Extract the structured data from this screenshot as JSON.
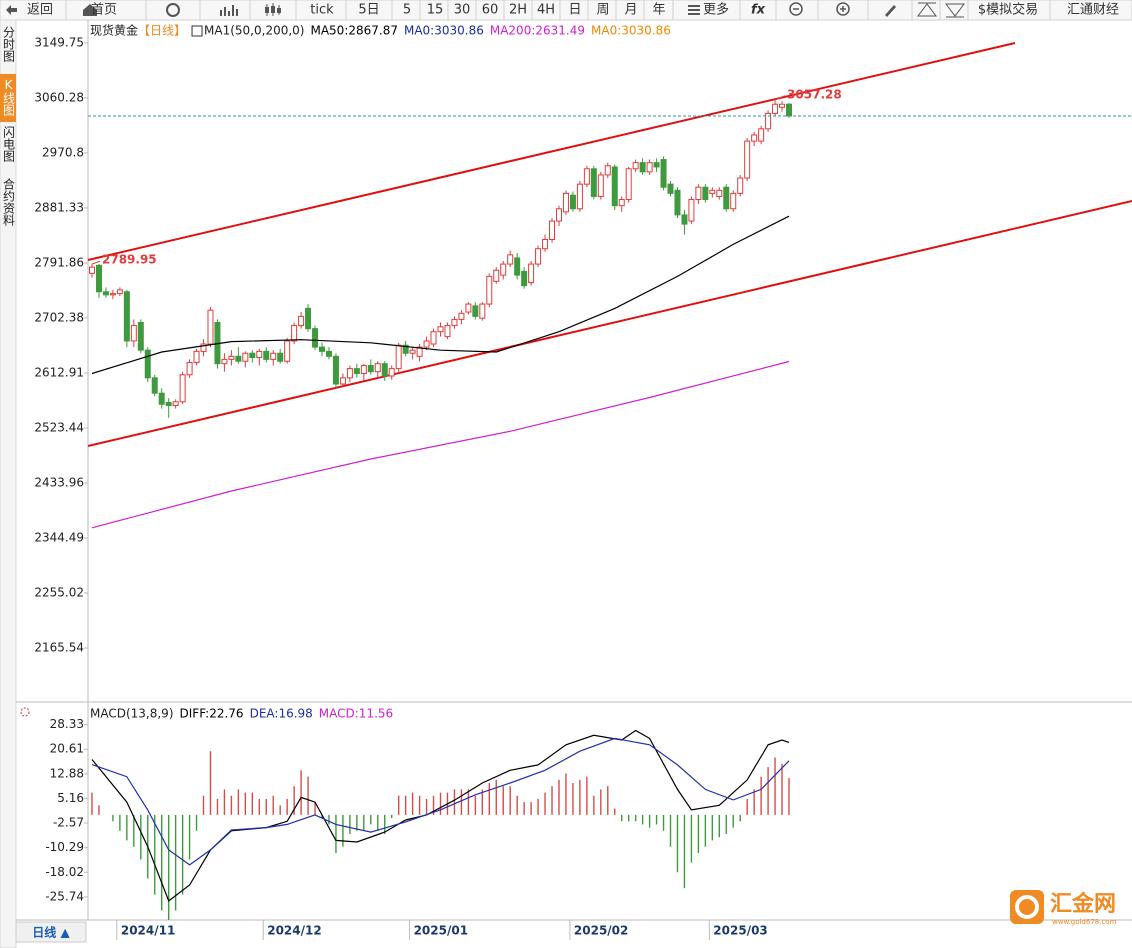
{
  "toolbar": [
    "返回",
    "首页",
    "tick",
    "5日",
    "5",
    "15",
    "30",
    "60",
    "2H",
    "4H",
    "日",
    "周",
    "月",
    "年",
    "更多",
    "fx",
    "$模拟交易",
    "汇通财经"
  ],
  "side_tabs": [
    "分时图",
    "K线图",
    "闪电图",
    "合约资料"
  ],
  "period_button": "日线 ▲",
  "logo": {
    "name": "汇金网",
    "url": "www.gold678.com"
  },
  "chart_data": [
    {
      "type": "candlestick",
      "title": "现货黄金",
      "period": "【日线】",
      "indicator": "MA1(50,0,200,0)",
      "legend": [
        {
          "text": "MA50:2867.87",
          "color": "#000000"
        },
        {
          "text": "MA0:3030.86",
          "color": "#1c2ca0"
        },
        {
          "text": "MA200:2631.49",
          "color": "#d020d0"
        },
        {
          "text": "MA0:3030.86",
          "color": "#f08a00"
        }
      ],
      "up_color": "#e03c3c",
      "down_color": "#3f9a3f",
      "candles": [
        [
          2775,
          2789.95,
          2768,
          2785
        ],
        [
          2788,
          2790,
          2735,
          2745
        ],
        [
          2745,
          2752,
          2735,
          2740
        ],
        [
          2740,
          2748,
          2733,
          2742
        ],
        [
          2742,
          2752,
          2738,
          2748
        ],
        [
          2745,
          2748,
          2655,
          2665
        ],
        [
          2665,
          2700,
          2655,
          2690
        ],
        [
          2695,
          2700,
          2645,
          2650
        ],
        [
          2650,
          2655,
          2598,
          2605
        ],
        [
          2605,
          2610,
          2575,
          2580
        ],
        [
          2580,
          2588,
          2555,
          2562
        ],
        [
          2565,
          2572,
          2540,
          2560
        ],
        [
          2560,
          2570,
          2555,
          2566
        ],
        [
          2566,
          2615,
          2562,
          2610
        ],
        [
          2610,
          2635,
          2605,
          2630
        ],
        [
          2630,
          2652,
          2625,
          2648
        ],
        [
          2648,
          2668,
          2640,
          2660
        ],
        [
          2660,
          2720,
          2655,
          2715
        ],
        [
          2695,
          2700,
          2620,
          2628
        ],
        [
          2628,
          2645,
          2615,
          2635
        ],
        [
          2635,
          2650,
          2625,
          2640
        ],
        [
          2640,
          2655,
          2628,
          2632
        ],
        [
          2632,
          2648,
          2622,
          2645
        ],
        [
          2645,
          2650,
          2630,
          2638
        ],
        [
          2638,
          2652,
          2625,
          2648
        ],
        [
          2648,
          2655,
          2630,
          2635
        ],
        [
          2635,
          2650,
          2625,
          2645
        ],
        [
          2645,
          2652,
          2628,
          2632
        ],
        [
          2632,
          2670,
          2628,
          2665
        ],
        [
          2665,
          2695,
          2660,
          2690
        ],
        [
          2690,
          2712,
          2685,
          2705
        ],
        [
          2718,
          2725,
          2680,
          2685
        ],
        [
          2685,
          2690,
          2650,
          2655
        ],
        [
          2655,
          2662,
          2640,
          2648
        ],
        [
          2648,
          2655,
          2635,
          2640
        ],
        [
          2640,
          2645,
          2588,
          2595
        ],
        [
          2595,
          2612,
          2590,
          2605
        ],
        [
          2605,
          2625,
          2598,
          2620
        ],
        [
          2620,
          2628,
          2605,
          2612
        ],
        [
          2612,
          2628,
          2600,
          2625
        ],
        [
          2625,
          2635,
          2610,
          2615
        ],
        [
          2615,
          2632,
          2605,
          2628
        ],
        [
          2628,
          2632,
          2600,
          2608
        ],
        [
          2608,
          2625,
          2602,
          2620
        ],
        [
          2620,
          2662,
          2615,
          2658
        ],
        [
          2658,
          2665,
          2640,
          2645
        ],
        [
          2645,
          2655,
          2635,
          2650
        ],
        [
          2640,
          2660,
          2632,
          2655
        ],
        [
          2655,
          2672,
          2650,
          2665
        ],
        [
          2660,
          2685,
          2655,
          2680
        ],
        [
          2680,
          2695,
          2672,
          2688
        ],
        [
          2672,
          2695,
          2668,
          2690
        ],
        [
          2690,
          2705,
          2685,
          2700
        ],
        [
          2700,
          2715,
          2692,
          2710
        ],
        [
          2712,
          2728,
          2708,
          2725
        ],
        [
          2722,
          2728,
          2700,
          2705
        ],
        [
          2702,
          2728,
          2698,
          2725
        ],
        [
          2725,
          2775,
          2720,
          2770
        ],
        [
          2762,
          2785,
          2758,
          2780
        ],
        [
          2772,
          2795,
          2765,
          2790
        ],
        [
          2790,
          2812,
          2785,
          2805
        ],
        [
          2800,
          2808,
          2765,
          2772
        ],
        [
          2778,
          2785,
          2750,
          2755
        ],
        [
          2760,
          2795,
          2755,
          2790
        ],
        [
          2790,
          2820,
          2785,
          2815
        ],
        [
          2815,
          2838,
          2810,
          2830
        ],
        [
          2830,
          2865,
          2825,
          2860
        ],
        [
          2860,
          2885,
          2852,
          2880
        ],
        [
          2875,
          2910,
          2870,
          2905
        ],
        [
          2902,
          2908,
          2875,
          2880
        ],
        [
          2880,
          2925,
          2875,
          2920
        ],
        [
          2920,
          2950,
          2915,
          2945
        ],
        [
          2945,
          2950,
          2895,
          2900
        ],
        [
          2900,
          2940,
          2895,
          2935
        ],
        [
          2935,
          2955,
          2930,
          2950
        ],
        [
          2948,
          2952,
          2878,
          2885
        ],
        [
          2885,
          2900,
          2875,
          2895
        ],
        [
          2895,
          2948,
          2890,
          2945
        ],
        [
          2945,
          2960,
          2940,
          2955
        ],
        [
          2955,
          2962,
          2935,
          2940
        ],
        [
          2940,
          2960,
          2935,
          2955
        ],
        [
          2955,
          2962,
          2940,
          2948
        ],
        [
          2960,
          2965,
          2910,
          2915
        ],
        [
          2920,
          2925,
          2900,
          2905
        ],
        [
          2910,
          2915,
          2865,
          2870
        ],
        [
          2870,
          2878,
          2838,
          2855
        ],
        [
          2860,
          2900,
          2855,
          2895
        ],
        [
          2895,
          2920,
          2888,
          2915
        ],
        [
          2915,
          2920,
          2890,
          2895
        ],
        [
          2905,
          2915,
          2898,
          2910
        ],
        [
          2900,
          2915,
          2895,
          2910
        ],
        [
          2915,
          2920,
          2875,
          2880
        ],
        [
          2880,
          2910,
          2875,
          2905
        ],
        [
          2905,
          2935,
          2900,
          2930
        ],
        [
          2930,
          2995,
          2925,
          2990
        ],
        [
          2990,
          3005,
          2982,
          3000
        ],
        [
          2990,
          3015,
          2985,
          3010
        ],
        [
          3010,
          3040,
          3005,
          3035
        ],
        [
          3035,
          3057.28,
          3030,
          3050
        ],
        [
          3045,
          3055,
          3038,
          3050
        ],
        [
          3050,
          3052,
          3028,
          3030.86
        ]
      ],
      "series": [
        {
          "color": "#000000",
          "x": [
            0,
            10,
            20,
            30,
            40,
            50,
            58,
            67,
            75,
            84,
            92,
            100
          ],
          "values": [
            2612,
            2647,
            2664,
            2667,
            2662,
            2650,
            2647,
            2680,
            2718,
            2770,
            2822,
            2867.87
          ]
        },
        {
          "color": "#d020d0",
          "x": [
            0,
            20,
            40,
            60,
            80,
            100
          ],
          "values": [
            2361,
            2421,
            2473,
            2518,
            2573,
            2631.49
          ]
        }
      ],
      "ylim": [
        2081,
        3187
      ],
      "yticks": [
        3149.75,
        3060.28,
        2970.8,
        2881.33,
        2791.86,
        2702.38,
        2612.91,
        2523.44,
        2433.96,
        2344.49,
        2255.02,
        2165.54
      ],
      "xticks": [
        {
          "value": 5,
          "label": "2024/11"
        },
        {
          "value": 26,
          "label": "2024/12"
        },
        {
          "value": 47,
          "label": "2025/01"
        },
        {
          "value": 70,
          "label": "2025/02"
        },
        {
          "value": 90,
          "label": "2025/03"
        }
      ]
    },
    {
      "type": "macd",
      "title": "MACD(13,8,9)",
      "legend": [
        {
          "text": "DIFF:22.76",
          "color": "#000000"
        },
        {
          "text": "DEA:16.98",
          "color": "#1c2ca0"
        },
        {
          "text": "MACD:11.56",
          "color": "#d020d0"
        }
      ],
      "up_color": "#d84a4a",
      "down_color": "#3f9a3f",
      "histogram": [
        7,
        3,
        0,
        -2,
        -5,
        -8,
        -10,
        -14,
        -20,
        -25,
        -30,
        -33,
        -30,
        -25,
        -14,
        -5,
        6,
        20,
        5,
        8,
        6,
        8,
        7,
        7,
        5,
        5,
        6,
        3,
        5,
        9,
        14,
        12,
        4,
        -1,
        -3,
        -12,
        -10,
        -6,
        -5,
        -5,
        -3,
        -5,
        -6,
        -1,
        6,
        6,
        7,
        6,
        5,
        6,
        7,
        7,
        8,
        8,
        8,
        6,
        8,
        10,
        11,
        9,
        9,
        6,
        4,
        4,
        5,
        7,
        9,
        11,
        13,
        10,
        11,
        12,
        6,
        8,
        9,
        2,
        -2,
        -2,
        -2,
        -3,
        -4,
        -3,
        -5,
        -10,
        -18,
        -23,
        -15,
        -12,
        -10,
        -8,
        -7,
        -6,
        -4,
        -2,
        5,
        8,
        12,
        15,
        18,
        16,
        11.56
      ],
      "series": [
        {
          "color": "#000000",
          "x": [
            0,
            5,
            8,
            11,
            14,
            17,
            20,
            25,
            28,
            30,
            32,
            35,
            38,
            42,
            45,
            48,
            52,
            56,
            60,
            64,
            68,
            72,
            76,
            78,
            80,
            84,
            86,
            90,
            94,
            97,
            99,
            100
          ],
          "values": [
            17.4,
            4,
            -10,
            -27,
            -22,
            -11,
            -5,
            -4,
            -2,
            5.5,
            4,
            -8,
            -8.5,
            -5.4,
            -1.6,
            0,
            4.6,
            10,
            14,
            15.7,
            22,
            25,
            23.5,
            26.5,
            24,
            8,
            1.6,
            3,
            11,
            22,
            23.5,
            22.76
          ]
        },
        {
          "color": "#2030b0",
          "x": [
            0,
            5,
            8,
            11,
            14,
            17,
            20,
            25,
            28,
            32,
            35,
            40,
            45,
            50,
            55,
            60,
            65,
            70,
            75,
            80,
            84,
            88,
            92,
            96,
            100
          ],
          "values": [
            15.8,
            12,
            1.5,
            -11,
            -15.7,
            -11,
            -4.7,
            -4,
            -3,
            0,
            -3,
            -5.4,
            -2.2,
            1.6,
            6.3,
            10,
            14,
            20,
            24,
            22,
            15.7,
            8,
            4.7,
            8,
            16.98
          ]
        }
      ],
      "ylim": [
        -33,
        34.5
      ],
      "yticks": [
        28.33,
        20.61,
        12.88,
        5.16,
        -2.57,
        -10.29,
        -18.02,
        -25.74
      ]
    }
  ]
}
